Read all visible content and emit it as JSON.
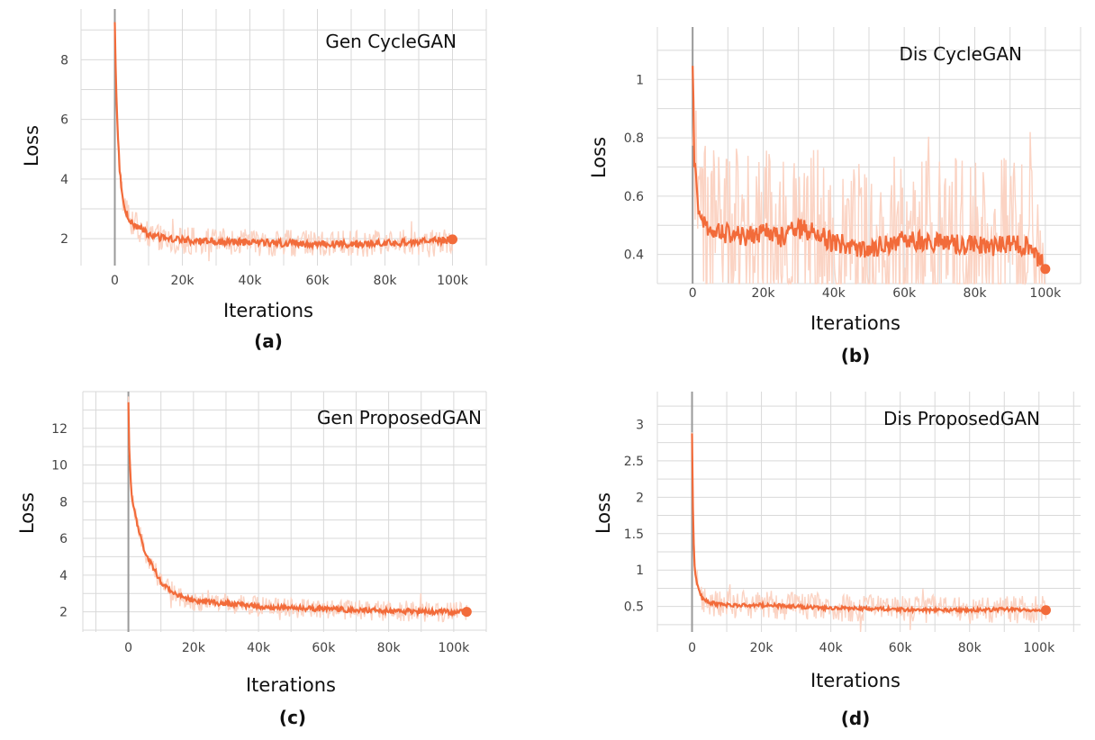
{
  "colors": {
    "line": "#f26b3a",
    "raw": "#fbd3c3",
    "grid": "#d9d9d9",
    "zero_line": "#9a9a9a"
  },
  "chart_data": [
    {
      "type": "line",
      "panel": "(a)",
      "title": "Gen CycleGAN",
      "xlabel": "Iterations",
      "ylabel": "Loss",
      "xlim": [
        -10000,
        110000
      ],
      "ylim": [
        1.1,
        9.7
      ],
      "xticks": [
        0,
        20000,
        40000,
        60000,
        80000,
        100000
      ],
      "xticklabels": [
        "0",
        "20k",
        "40k",
        "60k",
        "80k",
        "100k"
      ],
      "yticks": [
        2,
        4,
        6,
        8
      ],
      "yticklabels": [
        "2",
        "4",
        "6",
        "8"
      ],
      "grid": true,
      "legend": "none",
      "series": [
        {
          "name": "smoothed",
          "x": [
            0,
            300,
            800,
            1500,
            2500,
            4000,
            6000,
            8000,
            10000,
            15000,
            20000,
            30000,
            40000,
            50000,
            60000,
            70000,
            80000,
            90000,
            100000
          ],
          "values": [
            9.2,
            7.5,
            5.6,
            4.2,
            3.2,
            2.7,
            2.45,
            2.3,
            2.15,
            2.0,
            1.95,
            1.9,
            1.88,
            1.85,
            1.82,
            1.83,
            1.85,
            1.9,
            1.98
          ],
          "noise": 0.12,
          "raw_noise": 0.45
        }
      ]
    },
    {
      "type": "line",
      "panel": "(b)",
      "title": "Dis CycleGAN",
      "xlabel": "Iterations",
      "ylabel": "Loss",
      "xlim": [
        -10000,
        110000
      ],
      "ylim": [
        0.3,
        1.18
      ],
      "xticks": [
        0,
        20000,
        40000,
        60000,
        80000,
        100000
      ],
      "xticklabels": [
        "0",
        "20k",
        "40k",
        "60k",
        "80k",
        "100k"
      ],
      "yticks": [
        0.4,
        0.6,
        0.8,
        1.0
      ],
      "yticklabels": [
        "0.4",
        "0.6",
        "0.8",
        "1"
      ],
      "grid": true,
      "legend": "none",
      "series": [
        {
          "name": "smoothed",
          "x": [
            0,
            500,
            1500,
            3000,
            5000,
            10000,
            15000,
            20000,
            25000,
            30000,
            35000,
            40000,
            50000,
            60000,
            70000,
            80000,
            85000,
            90000,
            95000,
            100000
          ],
          "values": [
            1.07,
            0.72,
            0.56,
            0.5,
            0.48,
            0.47,
            0.46,
            0.48,
            0.46,
            0.49,
            0.47,
            0.44,
            0.42,
            0.45,
            0.44,
            0.43,
            0.42,
            0.44,
            0.43,
            0.35
          ],
          "noise": 0.035,
          "raw_noise": 0.3
        }
      ]
    },
    {
      "type": "line",
      "panel": "(c)",
      "title": "Gen ProposedGAN",
      "xlabel": "Iterations",
      "ylabel": "Loss",
      "xlim": [
        -14000,
        110000
      ],
      "ylim": [
        0.9,
        14.0
      ],
      "xticks": [
        0,
        20000,
        40000,
        60000,
        80000,
        100000
      ],
      "xticklabels": [
        "0",
        "20k",
        "40k",
        "60k",
        "80k",
        "100k"
      ],
      "yticks": [
        2,
        4,
        6,
        8,
        10,
        12
      ],
      "yticklabels": [
        "2",
        "4",
        "6",
        "8",
        "10",
        "12"
      ],
      "grid": true,
      "legend": "none",
      "series": [
        {
          "name": "smoothed",
          "x": [
            0,
            300,
            800,
            1500,
            3000,
            5000,
            8000,
            10000,
            15000,
            20000,
            30000,
            40000,
            50000,
            60000,
            70000,
            80000,
            90000,
            104000
          ],
          "values": [
            13.4,
            10.5,
            8.8,
            7.8,
            6.5,
            5.3,
            4.3,
            3.6,
            2.9,
            2.6,
            2.45,
            2.3,
            2.2,
            2.15,
            2.1,
            2.05,
            2.0,
            2.0
          ],
          "noise": 0.14,
          "raw_noise": 0.55
        }
      ]
    },
    {
      "type": "line",
      "panel": "(d)",
      "title": "Dis ProposedGAN",
      "xlabel": "Iterations",
      "ylabel": "Loss",
      "xlim": [
        -10000,
        112000
      ],
      "ylim": [
        0.15,
        3.45
      ],
      "xticks": [
        0,
        20000,
        40000,
        60000,
        80000,
        100000
      ],
      "xticklabels": [
        "0",
        "20k",
        "40k",
        "60k",
        "80k",
        "100k"
      ],
      "yticks": [
        0.5,
        1.0,
        1.5,
        2.0,
        2.5,
        3.0
      ],
      "yticklabels": [
        "0.5",
        "1",
        "1.5",
        "2",
        "2.5",
        "3"
      ],
      "grid": true,
      "legend": "none",
      "series": [
        {
          "name": "smoothed",
          "x": [
            0,
            300,
            800,
            1500,
            3000,
            5000,
            10000,
            20000,
            30000,
            40000,
            50000,
            60000,
            70000,
            80000,
            90000,
            102000
          ],
          "values": [
            2.85,
            1.6,
            1.0,
            0.8,
            0.6,
            0.55,
            0.52,
            0.52,
            0.5,
            0.48,
            0.47,
            0.46,
            0.45,
            0.45,
            0.46,
            0.45
          ],
          "noise": 0.025,
          "raw_noise": 0.2
        }
      ]
    }
  ]
}
